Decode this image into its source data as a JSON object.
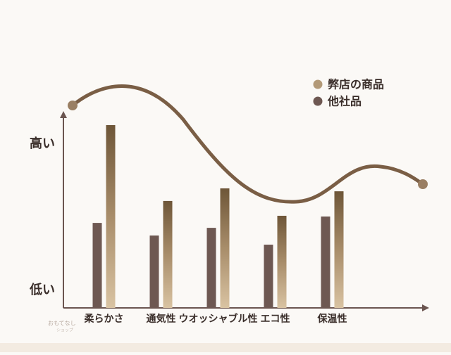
{
  "chart_data": {
    "type": "bar",
    "categories": [
      "柔らかさ",
      "通気性",
      "ウオッシャブル性",
      "エコ性",
      "保温性"
    ],
    "series": [
      {
        "name": "弊店の商品",
        "color": "#b39a78",
        "values": [
          100,
          58.5,
          65.4,
          50.4,
          63.8
        ]
      },
      {
        "name": "他社品",
        "color": "#6e5852",
        "values": [
          46.5,
          39.6,
          43.8,
          34.6,
          50
        ]
      }
    ],
    "ylim": [
      0,
      100
    ],
    "y_axis_labels": {
      "high": "高い",
      "low": "低い"
    },
    "watermark": [
      "おもてなし",
      "ショップ"
    ]
  }
}
